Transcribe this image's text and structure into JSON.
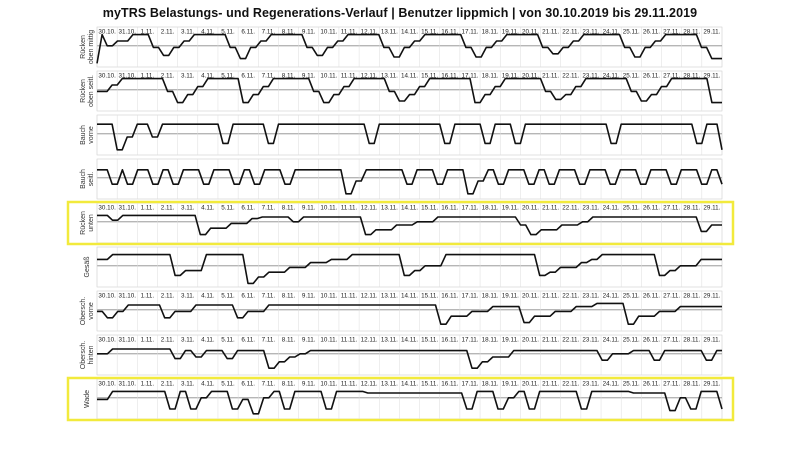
{
  "title": "myTRS Belastungs- und Regenerations-Verlauf | Benutzer lippmich | von 30.10.2019 bis 29.11.2019",
  "highlight_color": "#f2ea3c",
  "line_color": "#111111",
  "chart_data": {
    "type": "line",
    "title": "myTRS Belastungs- und Regenerations-Verlauf | Benutzer lippmich | von 30.10.2019 bis 29.11.2019",
    "x_labels": [
      "30.10.",
      "31.10.",
      "1.11.",
      "2.11.",
      "3.11.",
      "4.11.",
      "5.11.",
      "6.11.",
      "7.11.",
      "8.11.",
      "9.11.",
      "10.11.",
      "11.11.",
      "12.11.",
      "13.11.",
      "14.11.",
      "15.11.",
      "16.11.",
      "17.11.",
      "18.11.",
      "19.11.",
      "20.11.",
      "21.11.",
      "22.11.",
      "23.11.",
      "24.11.",
      "25.11.",
      "26.11.",
      "27.11.",
      "28.11.",
      "29.11."
    ],
    "y_range": [
      0,
      1
    ],
    "reference_level": 0.6,
    "panels": [
      {
        "label": [
          "Rücken",
          "oben mittig"
        ],
        "show_ticks": true,
        "highlighted": false,
        "values": [
          0.05,
          0.95,
          0.6,
          0.6,
          0.75,
          0.75,
          0.75,
          0.95,
          0.95,
          0.95,
          0.95,
          0.55,
          0.55,
          0.3,
          0.3,
          0.55,
          0.55,
          0.75,
          0.75,
          0.95,
          0.95,
          0.95,
          0.95,
          0.95,
          0.95,
          0.95,
          0.55,
          0.55,
          0.2,
          0.2,
          0.55,
          0.55,
          0.75,
          0.75,
          0.95,
          0.95,
          0.95,
          0.95,
          0.95,
          0.95,
          0.95,
          0.55,
          0.55,
          0.3,
          0.3,
          0.55,
          0.55,
          0.75,
          0.75,
          0.95,
          0.95,
          0.95,
          0.95,
          0.95,
          0.95,
          0.95,
          0.55,
          0.55,
          0.25,
          0.25,
          0.55,
          0.55,
          0.75,
          0.75,
          0.95,
          0.95,
          0.95,
          0.95,
          0.95,
          0.95,
          0.95,
          0.95,
          0.55,
          0.55,
          0.25,
          0.25,
          0.55,
          0.55,
          0.75,
          0.75,
          0.95,
          0.95,
          0.95,
          0.95,
          0.95,
          0.95,
          0.95,
          0.55,
          0.55,
          0.35,
          0.35,
          0.55,
          0.55,
          0.75,
          0.75,
          0.95,
          0.95,
          0.95,
          0.95,
          0.95,
          0.95,
          0.95,
          0.95,
          0.55,
          0.55,
          0.25,
          0.25,
          0.55,
          0.55,
          0.75,
          0.75,
          0.95,
          0.95,
          0.95,
          0.95,
          0.95,
          0.95,
          0.95,
          0.55,
          0.55,
          0.2,
          0.2,
          0.2
        ]
      },
      {
        "label": [
          "Rücken",
          "oben seitl."
        ],
        "show_ticks": true,
        "highlighted": false,
        "values": [
          0.55,
          0.55,
          0.55,
          0.75,
          0.75,
          0.95,
          0.95,
          0.95,
          0.95,
          0.95,
          0.95,
          0.95,
          0.95,
          0.95,
          0.55,
          0.55,
          0.2,
          0.2,
          0.45,
          0.45,
          0.7,
          0.7,
          0.95,
          0.95,
          0.95,
          0.95,
          0.95,
          0.95,
          0.95,
          0.2,
          0.2,
          0.45,
          0.45,
          0.7,
          0.7,
          0.95,
          0.95,
          0.95,
          0.95,
          0.95,
          0.95,
          0.95,
          0.95,
          0.55,
          0.55,
          0.2,
          0.2,
          0.45,
          0.45,
          0.7,
          0.7,
          0.95,
          0.95,
          0.95,
          0.95,
          0.95,
          0.95,
          0.95,
          0.55,
          0.55,
          0.25,
          0.25,
          0.45,
          0.45,
          0.7,
          0.7,
          0.95,
          0.95,
          0.95,
          0.95,
          0.95,
          0.95,
          0.95,
          0.95,
          0.95,
          0.2,
          0.2,
          0.45,
          0.45,
          0.7,
          0.7,
          0.95,
          0.95,
          0.95,
          0.95,
          0.95,
          0.95,
          0.95,
          0.95,
          0.55,
          0.55,
          0.3,
          0.3,
          0.45,
          0.45,
          0.7,
          0.7,
          0.95,
          0.95,
          0.95,
          0.95,
          0.95,
          0.95,
          0.95,
          0.95,
          0.95,
          0.55,
          0.55,
          0.25,
          0.25,
          0.45,
          0.45,
          0.7,
          0.7,
          0.95,
          0.95,
          0.95,
          0.95,
          0.95,
          0.95,
          0.95,
          0.95,
          0.2,
          0.2,
          0.2
        ]
      },
      {
        "label": [
          "Bauch",
          "vorne"
        ],
        "show_ticks": false,
        "highlighted": false,
        "values": [
          0.9,
          0.9,
          0.9,
          0.9,
          0.1,
          0.1,
          0.5,
          0.5,
          0.9,
          0.9,
          0.9,
          0.5,
          0.5,
          0.9,
          0.9,
          0.9,
          0.9,
          0.9,
          0.9,
          0.9,
          0.9,
          0.9,
          0.9,
          0.9,
          0.9,
          0.3,
          0.3,
          0.9,
          0.9,
          0.9,
          0.9,
          0.9,
          0.9,
          0.9,
          0.3,
          0.3,
          0.9,
          0.9,
          0.9,
          0.9,
          0.9,
          0.9,
          0.9,
          0.9,
          0.9,
          0.9,
          0.9,
          0.9,
          0.9,
          0.9,
          0.9,
          0.9,
          0.9,
          0.9,
          0.3,
          0.3,
          0.9,
          0.9,
          0.9,
          0.9,
          0.9,
          0.9,
          0.9,
          0.9,
          0.9,
          0.9,
          0.9,
          0.9,
          0.9,
          0.3,
          0.3,
          0.9,
          0.9,
          0.9,
          0.9,
          0.9,
          0.9,
          0.3,
          0.3,
          0.9,
          0.9,
          0.9,
          0.9,
          0.3,
          0.3,
          0.9,
          0.9,
          0.9,
          0.9,
          0.9,
          0.9,
          0.9,
          0.9,
          0.9,
          0.9,
          0.9,
          0.9,
          0.9,
          0.9,
          0.9,
          0.9,
          0.9,
          0.3,
          0.3,
          0.9,
          0.9,
          0.9,
          0.9,
          0.9,
          0.9,
          0.9,
          0.9,
          0.9,
          0.9,
          0.9,
          0.9,
          0.9,
          0.9,
          0.9,
          0.3,
          0.3,
          0.9,
          0.9,
          0.9,
          0.1
        ]
      },
      {
        "label": [
          "Bauch",
          "seitl."
        ],
        "show_ticks": false,
        "highlighted": false,
        "values": [
          0.85,
          0.85,
          0.85,
          0.4,
          0.4,
          0.85,
          0.4,
          0.4,
          0.85,
          0.85,
          0.85,
          0.4,
          0.4,
          0.85,
          0.85,
          0.4,
          0.4,
          0.85,
          0.85,
          0.85,
          0.85,
          0.4,
          0.4,
          0.85,
          0.85,
          0.85,
          0.85,
          0.4,
          0.4,
          0.85,
          0.85,
          0.4,
          0.4,
          0.85,
          0.85,
          0.85,
          0.85,
          0.4,
          0.4,
          0.85,
          0.85,
          0.85,
          0.85,
          0.85,
          0.85,
          0.85,
          0.85,
          0.85,
          0.85,
          0.1,
          0.1,
          0.5,
          0.5,
          0.85,
          0.85,
          0.85,
          0.85,
          0.85,
          0.85,
          0.85,
          0.85,
          0.4,
          0.4,
          0.85,
          0.85,
          0.85,
          0.85,
          0.4,
          0.4,
          0.85,
          0.85,
          0.85,
          0.85,
          0.1,
          0.1,
          0.5,
          0.5,
          0.85,
          0.85,
          0.4,
          0.4,
          0.85,
          0.85,
          0.85,
          0.85,
          0.4,
          0.4,
          0.85,
          0.85,
          0.4,
          0.4,
          0.85,
          0.85,
          0.85,
          0.85,
          0.4,
          0.4,
          0.85,
          0.85,
          0.85,
          0.85,
          0.4,
          0.4,
          0.85,
          0.85,
          0.85,
          0.85,
          0.4,
          0.4,
          0.85,
          0.85,
          0.85,
          0.85,
          0.4,
          0.4,
          0.85,
          0.85,
          0.85,
          0.85,
          0.4,
          0.4,
          0.85,
          0.85,
          0.4
        ]
      },
      {
        "label": [
          "Rücken",
          "unten"
        ],
        "show_ticks": true,
        "highlighted": true,
        "values": [
          0.8,
          0.8,
          0.8,
          0.65,
          0.65,
          0.8,
          0.8,
          0.8,
          0.8,
          0.8,
          0.8,
          0.8,
          0.8,
          0.8,
          0.8,
          0.8,
          0.8,
          0.8,
          0.8,
          0.8,
          0.2,
          0.2,
          0.4,
          0.4,
          0.4,
          0.4,
          0.55,
          0.55,
          0.55,
          0.55,
          0.7,
          0.7,
          0.75,
          0.75,
          0.75,
          0.75,
          0.75,
          0.75,
          0.6,
          0.6,
          0.75,
          0.75,
          0.75,
          0.75,
          0.75,
          0.75,
          0.75,
          0.75,
          0.75,
          0.75,
          0.75,
          0.75,
          0.2,
          0.2,
          0.35,
          0.35,
          0.35,
          0.35,
          0.5,
          0.5,
          0.5,
          0.5,
          0.6,
          0.6,
          0.6,
          0.6,
          0.75,
          0.75,
          0.75,
          0.75,
          0.75,
          0.75,
          0.75,
          0.75,
          0.75,
          0.75,
          0.75,
          0.75,
          0.75,
          0.75,
          0.75,
          0.75,
          0.5,
          0.5,
          0.2,
          0.2,
          0.35,
          0.35,
          0.35,
          0.35,
          0.5,
          0.5,
          0.5,
          0.5,
          0.6,
          0.6,
          0.75,
          0.75,
          0.75,
          0.75,
          0.75,
          0.75,
          0.75,
          0.75,
          0.75,
          0.75,
          0.75,
          0.75,
          0.75,
          0.75,
          0.75,
          0.75,
          0.75,
          0.75,
          0.75,
          0.75,
          0.75,
          0.3,
          0.3,
          0.5,
          0.5,
          0.5
        ]
      },
      {
        "label": [
          "Gesäß"
        ],
        "show_ticks": false,
        "highlighted": false,
        "values": [
          0.8,
          0.8,
          0.8,
          0.95,
          0.95,
          0.95,
          0.95,
          0.95,
          0.95,
          0.95,
          0.95,
          0.95,
          0.95,
          0.95,
          0.95,
          0.3,
          0.3,
          0.45,
          0.45,
          0.45,
          0.45,
          0.95,
          0.95,
          0.95,
          0.95,
          0.95,
          0.95,
          0.95,
          0.95,
          0.05,
          0.05,
          0.25,
          0.25,
          0.4,
          0.4,
          0.4,
          0.4,
          0.55,
          0.55,
          0.55,
          0.55,
          0.7,
          0.7,
          0.7,
          0.7,
          0.8,
          0.8,
          0.8,
          0.8,
          0.95,
          0.95,
          0.95,
          0.95,
          0.95,
          0.95,
          0.95,
          0.95,
          0.95,
          0.95,
          0.3,
          0.3,
          0.45,
          0.45,
          0.6,
          0.6,
          0.6,
          0.6,
          0.95,
          0.95,
          0.95,
          0.95,
          0.95,
          0.95,
          0.95,
          0.95,
          0.95,
          0.95,
          0.95,
          0.95,
          0.95,
          0.95,
          0.95,
          0.95,
          0.95,
          0.95,
          0.3,
          0.3,
          0.4,
          0.4,
          0.55,
          0.55,
          0.55,
          0.55,
          0.7,
          0.7,
          0.8,
          0.8,
          0.95,
          0.95,
          0.95,
          0.95,
          0.95,
          0.95,
          0.95,
          0.95,
          0.95,
          0.95,
          0.95,
          0.3,
          0.3,
          0.45,
          0.45,
          0.6,
          0.6,
          0.6,
          0.6,
          0.8,
          0.8,
          0.8,
          0.8,
          0.8
        ]
      },
      {
        "label": [
          "Obersch.",
          "vorne"
        ],
        "show_ticks": true,
        "highlighted": false,
        "values": [
          0.55,
          0.55,
          0.35,
          0.35,
          0.55,
          0.55,
          0.75,
          0.75,
          0.75,
          0.75,
          0.75,
          0.75,
          0.75,
          0.35,
          0.35,
          0.55,
          0.55,
          0.55,
          0.55,
          0.75,
          0.75,
          0.75,
          0.75,
          0.75,
          0.75,
          0.75,
          0.75,
          0.35,
          0.35,
          0.55,
          0.55,
          0.55,
          0.55,
          0.75,
          0.75,
          0.75,
          0.75,
          0.75,
          0.75,
          0.75,
          0.75,
          0.75,
          0.75,
          0.75,
          0.75,
          0.75,
          0.75,
          0.75,
          0.75,
          0.75,
          0.75,
          0.75,
          0.75,
          0.75,
          0.75,
          0.75,
          0.75,
          0.75,
          0.75,
          0.75,
          0.75,
          0.75,
          0.75,
          0.75,
          0.75,
          0.75,
          0.15,
          0.15,
          0.4,
          0.4,
          0.4,
          0.4,
          0.55,
          0.55,
          0.55,
          0.55,
          0.7,
          0.7,
          0.7,
          0.7,
          0.7,
          0.7,
          0.2,
          0.2,
          0.4,
          0.4,
          0.4,
          0.4,
          0.55,
          0.55,
          0.55,
          0.55,
          0.7,
          0.7,
          0.7,
          0.7,
          0.8,
          0.8,
          0.8,
          0.8,
          0.8,
          0.8,
          0.15,
          0.15,
          0.4,
          0.4,
          0.4,
          0.4,
          0.55,
          0.55,
          0.55,
          0.55,
          0.7,
          0.7,
          0.7,
          0.7,
          0.7,
          0.7,
          0.7,
          0.7,
          0.7
        ]
      },
      {
        "label": [
          "Obersch.",
          "hinten"
        ],
        "show_ticks": true,
        "highlighted": false,
        "values": [
          0.6,
          0.6,
          0.6,
          0.75,
          0.75,
          0.75,
          0.75,
          0.75,
          0.75,
          0.75,
          0.75,
          0.75,
          0.75,
          0.75,
          0.75,
          0.45,
          0.45,
          0.7,
          0.7,
          0.5,
          0.5,
          0.7,
          0.7,
          0.7,
          0.7,
          0.45,
          0.45,
          0.7,
          0.7,
          0.7,
          0.7,
          0.7,
          0.7,
          0.15,
          0.15,
          0.35,
          0.35,
          0.5,
          0.5,
          0.6,
          0.6,
          0.7,
          0.7,
          0.7,
          0.7,
          0.7,
          0.7,
          0.7,
          0.7,
          0.7,
          0.7,
          0.7,
          0.7,
          0.7,
          0.7,
          0.7,
          0.7,
          0.7,
          0.7,
          0.7,
          0.7,
          0.7,
          0.7,
          0.7,
          0.7,
          0.7,
          0.7,
          0.7,
          0.7,
          0.7,
          0.7,
          0.7,
          0.15,
          0.15,
          0.35,
          0.35,
          0.5,
          0.5,
          0.5,
          0.5,
          0.7,
          0.7,
          0.7,
          0.7,
          0.7,
          0.7,
          0.7,
          0.7,
          0.7,
          0.7,
          0.7,
          0.7,
          0.7,
          0.7,
          0.7,
          0.7,
          0.7,
          0.4,
          0.4,
          0.6,
          0.6,
          0.6,
          0.6,
          0.7,
          0.7,
          0.7,
          0.7,
          0.4,
          0.4,
          0.7,
          0.7,
          0.7,
          0.7,
          0.7,
          0.7,
          0.7,
          0.7,
          0.4,
          0.4,
          0.7,
          0.7
        ]
      },
      {
        "label": [
          "Wade"
        ],
        "show_ticks": true,
        "highlighted": true,
        "values": [
          0.55,
          0.55,
          0.55,
          0.8,
          0.8,
          0.8,
          0.8,
          0.8,
          0.8,
          0.8,
          0.8,
          0.8,
          0.8,
          0.8,
          0.25,
          0.25,
          0.8,
          0.8,
          0.25,
          0.25,
          0.6,
          0.6,
          0.8,
          0.8,
          0.8,
          0.8,
          0.25,
          0.25,
          0.55,
          0.55,
          0.1,
          0.1,
          0.6,
          0.6,
          0.8,
          0.8,
          0.25,
          0.25,
          0.8,
          0.8,
          0.8,
          0.8,
          0.8,
          0.8,
          0.25,
          0.25,
          0.8,
          0.8,
          0.8,
          0.8,
          0.8,
          0.8,
          0.75,
          0.75,
          0.75,
          0.75,
          0.75,
          0.75,
          0.75,
          0.75,
          0.75,
          0.75,
          0.75,
          0.75,
          0.75,
          0.75,
          0.75,
          0.75,
          0.75,
          0.75,
          0.75,
          0.25,
          0.25,
          0.8,
          0.8,
          0.8,
          0.8,
          0.25,
          0.25,
          0.6,
          0.6,
          0.8,
          0.8,
          0.25,
          0.25,
          0.8,
          0.8,
          0.8,
          0.8,
          0.8,
          0.8,
          0.8,
          0.8,
          0.25,
          0.25,
          0.8,
          0.8,
          0.8,
          0.8,
          0.8,
          0.8,
          0.8,
          0.8,
          0.75,
          0.75,
          0.75,
          0.75,
          0.75,
          0.75,
          0.75,
          0.2,
          0.2,
          0.6,
          0.6,
          0.25,
          0.25,
          0.8,
          0.8,
          0.8,
          0.8,
          0.25
        ]
      }
    ]
  }
}
